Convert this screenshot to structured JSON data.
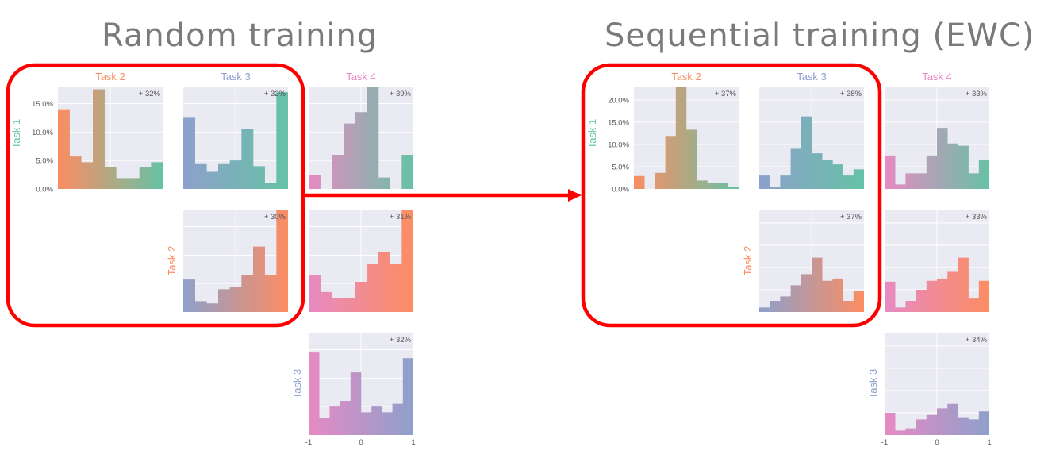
{
  "titles": {
    "left": "Random training",
    "right": "Sequential training (EWC)"
  },
  "colors": {
    "task1": "#66c2a5",
    "task2": "#fc8d62",
    "task3": "#8da0cb",
    "task4": "#e78ac3",
    "highlight": "#ff0000",
    "panel_bg": "#eaeaf2",
    "title_gray": "#7a7a7a"
  },
  "task_labels": {
    "task1": "Task 1",
    "task2": "Task 2",
    "task3": "Task 3",
    "task4": "Task 4"
  },
  "chart_data": [
    {
      "type": "bar",
      "group": "Random training",
      "x_tick_labels": [
        "-1",
        "0",
        "1"
      ],
      "y_tick_labels": [
        "0.0%",
        "5.0%",
        "10.0%",
        "15.0%"
      ],
      "ylim": [
        0,
        18
      ],
      "panels": [
        {
          "row": "Task 1",
          "col": "Task 2",
          "annotation": "+ 32%",
          "values": [
            14,
            5.7,
            4.7,
            17.5,
            3.8,
            1.9,
            1.9,
            3.8,
            4.7
          ]
        },
        {
          "row": "Task 1",
          "col": "Task 3",
          "annotation": "+ 32%",
          "values": [
            12.5,
            4.5,
            3,
            4.5,
            5,
            10.5,
            4,
            1,
            17
          ]
        },
        {
          "row": "Task 1",
          "col": "Task 4",
          "annotation": "+ 39%",
          "values": [
            2.5,
            0,
            6,
            11.5,
            13.5,
            18.2,
            2,
            0,
            6
          ]
        },
        {
          "row": "Task 2",
          "col": "Task 3",
          "annotation": "+ 30%",
          "values": [
            5.7,
            1.9,
            1.5,
            4,
            4.4,
            6.5,
            11.5,
            6.5,
            19
          ]
        },
        {
          "row": "Task 2",
          "col": "Task 4",
          "annotation": "+ 31%",
          "values": [
            6.5,
            3.5,
            2.5,
            2.5,
            5.3,
            8.5,
            10.5,
            8.5,
            20
          ]
        },
        {
          "row": "Task 3",
          "col": "Task 4",
          "annotation": "+ 32%",
          "values": [
            14.5,
            3,
            5,
            6,
            11,
            4,
            5,
            4,
            5.5,
            13.5
          ]
        }
      ]
    },
    {
      "type": "bar",
      "group": "Sequential training (EWC)",
      "x_tick_labels": [
        "-1",
        "0",
        "1"
      ],
      "y_tick_labels": [
        "0.0%",
        "5.0%",
        "10.0%",
        "15.0%",
        "20.0%"
      ],
      "ylim": [
        0,
        23
      ],
      "panels": [
        {
          "row": "Task 1",
          "col": "Task 2",
          "annotation": "+ 37%",
          "values": [
            2.9,
            0,
            3.6,
            11.9,
            23.3,
            13.3,
            1.9,
            1.4,
            1.4,
            0.5
          ]
        },
        {
          "row": "Task 1",
          "col": "Task 3",
          "annotation": "+ 38%",
          "values": [
            3,
            0.5,
            3,
            9,
            16.3,
            8,
            6.5,
            5.5,
            3,
            4.4
          ]
        },
        {
          "row": "Task 1",
          "col": "Task 4",
          "annotation": "+ 33%",
          "values": [
            7.5,
            1,
            3.5,
            3.5,
            7.5,
            13.7,
            10.2,
            9.7,
            3.5,
            6.5
          ]
        },
        {
          "row": "Task 2",
          "col": "Task 3",
          "annotation": "+ 37%",
          "values": [
            1,
            2.5,
            3.5,
            6,
            8.5,
            12.2,
            7,
            7.5,
            2.5,
            4.7
          ]
        },
        {
          "row": "Task 2",
          "col": "Task 4",
          "annotation": "+ 33%",
          "values": [
            6.8,
            1,
            2.5,
            5,
            7,
            7.5,
            9,
            12.2,
            3,
            7
          ]
        },
        {
          "row": "Task 3",
          "col": "Task 4",
          "annotation": "+ 34%",
          "values": [
            5,
            1,
            1.5,
            3.5,
            4.5,
            6,
            7,
            4,
            3.5,
            5.3
          ]
        }
      ]
    }
  ]
}
